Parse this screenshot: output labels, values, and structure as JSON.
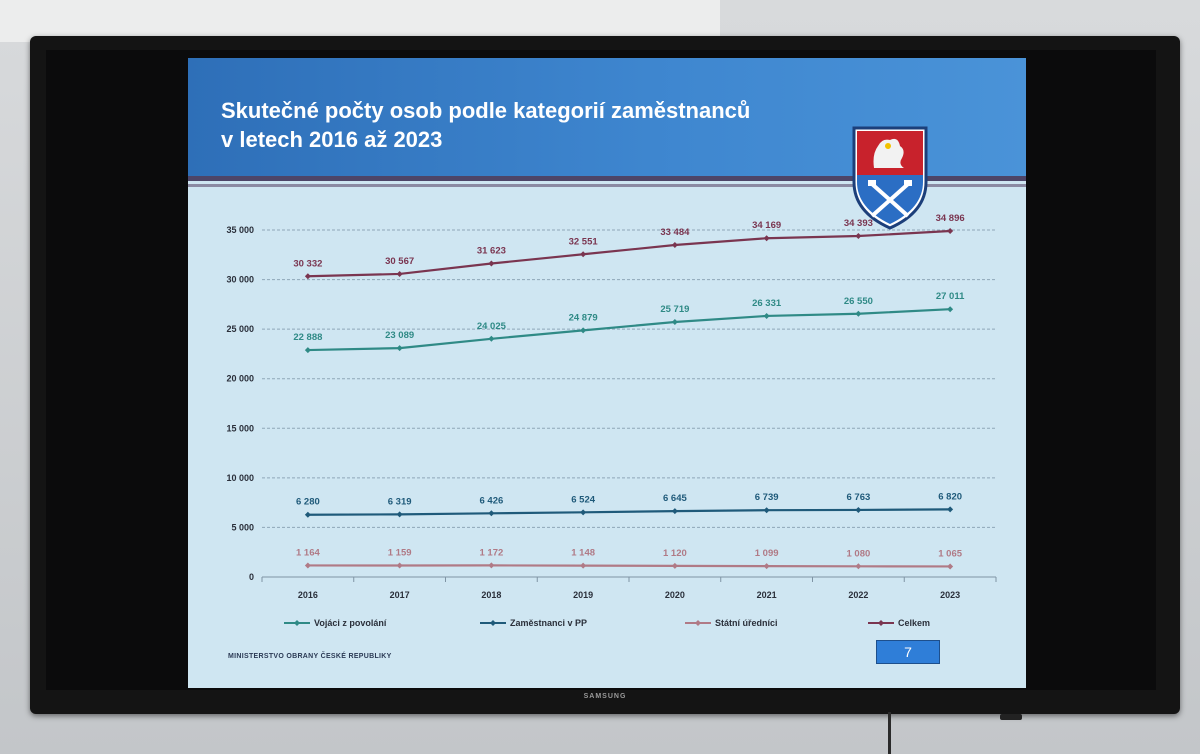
{
  "slide": {
    "title_line1": "Skutečné počty osob podle kategorií zaměstnanců",
    "title_line2": "v letech 2016 až 2023",
    "footer": "MINISTERSTVO OBRANY ČESKÉ REPUBLIKY",
    "page_number": "7"
  },
  "tv": {
    "brand": "SAMSUNG"
  },
  "colors": {
    "header_blue": "#3a7fc8",
    "slide_background": "#cfe6f2",
    "line_vojaci": "#2f8a86",
    "line_zamestnanci": "#1f5a7a",
    "line_statni": "#b07a86",
    "line_celkem": "#7a3550"
  },
  "chart_data": {
    "type": "line",
    "x": [
      "2016",
      "2017",
      "2018",
      "2019",
      "2020",
      "2021",
      "2022",
      "2023"
    ],
    "ylim": [
      0,
      35000
    ],
    "yticks": [
      0,
      5000,
      10000,
      15000,
      20000,
      25000,
      30000,
      35000
    ],
    "ytick_labels": [
      "0",
      "5 000",
      "10 000",
      "15 000",
      "20 000",
      "25 000",
      "30 000",
      "35 000"
    ],
    "grid": true,
    "legend_position": "bottom",
    "series": [
      {
        "name": "Vojáci z povolání",
        "values": [
          22888,
          23089,
          24025,
          24879,
          25719,
          26331,
          26550,
          27011
        ],
        "labels": [
          "22 888",
          "23 089",
          "24 025",
          "24 879",
          "25 719",
          "26 331",
          "26 550",
          "27 011"
        ]
      },
      {
        "name": "Zaměstnanci v PP",
        "values": [
          6280,
          6319,
          6426,
          6524,
          6645,
          6739,
          6763,
          6820
        ],
        "labels": [
          "6 280",
          "6 319",
          "6 426",
          "6 524",
          "6 645",
          "6 739",
          "6 763",
          "6 820"
        ]
      },
      {
        "name": "Státní úředníci",
        "values": [
          1164,
          1159,
          1172,
          1148,
          1120,
          1099,
          1080,
          1065
        ],
        "labels": [
          "1 164",
          "1 159",
          "1 172",
          "1 148",
          "1 120",
          "1 099",
          "1 080",
          "1 065"
        ]
      },
      {
        "name": "Celkem",
        "values": [
          30332,
          30567,
          31623,
          32551,
          33484,
          34169,
          34393,
          34896
        ],
        "labels": [
          "30 332",
          "30 567",
          "31 623",
          "32 551",
          "33 484",
          "34 169",
          "34 393",
          "34 896"
        ]
      }
    ]
  }
}
